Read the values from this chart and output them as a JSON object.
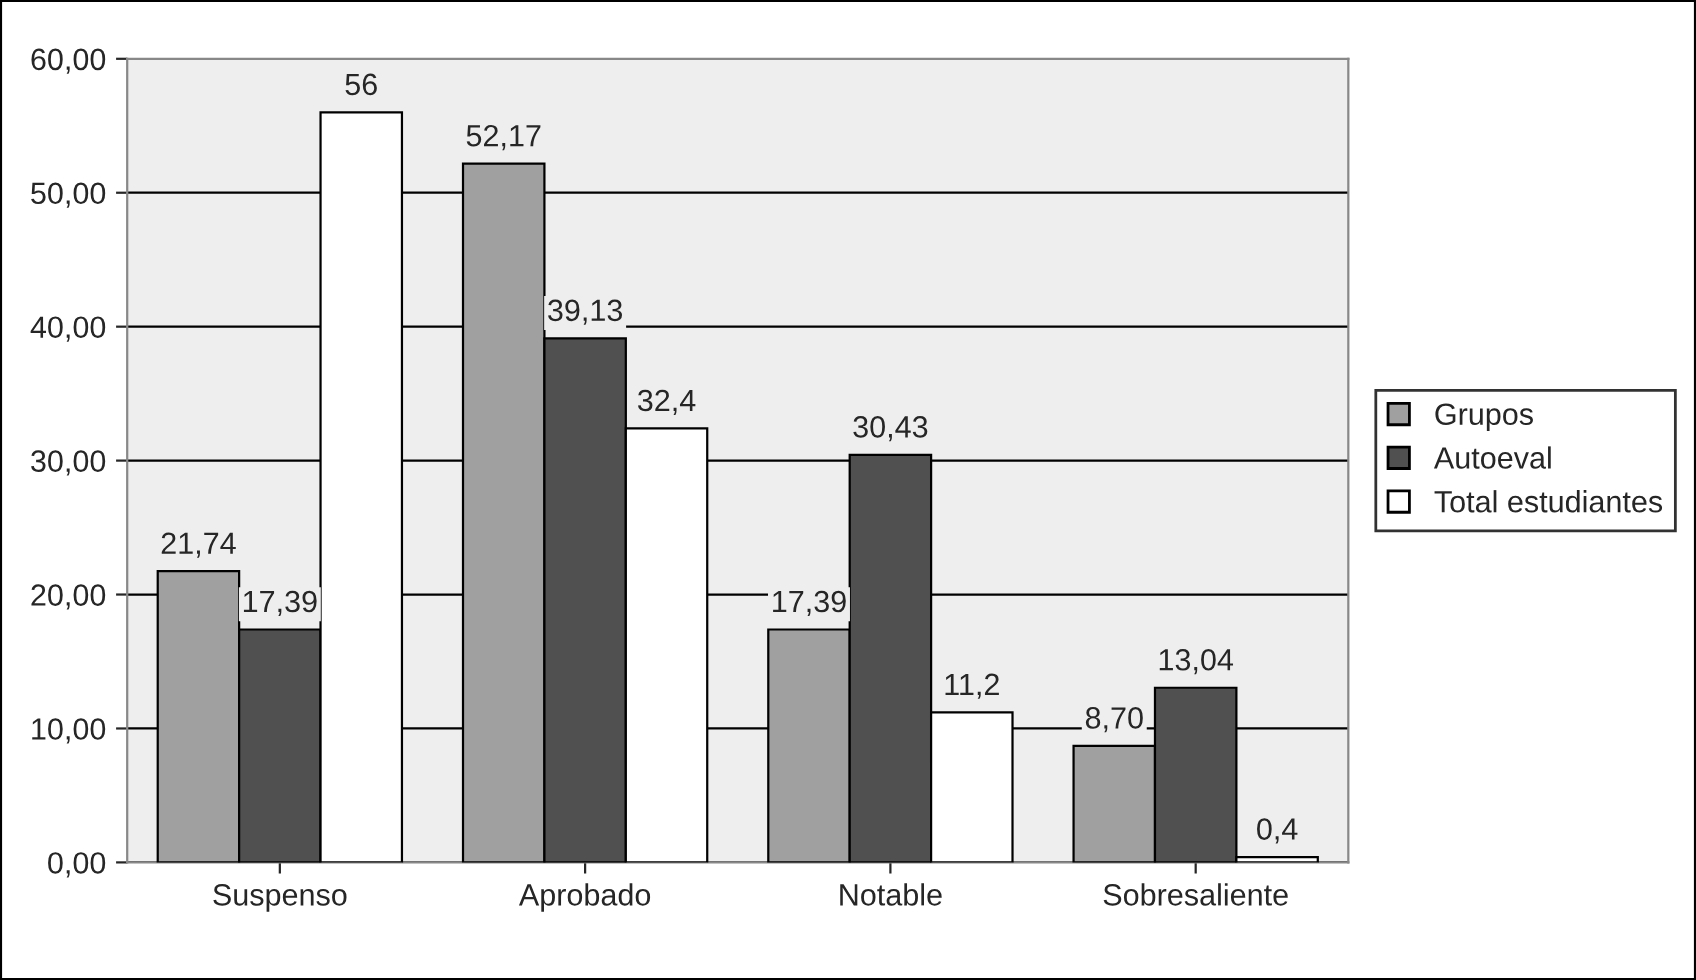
{
  "chart_data": {
    "type": "bar",
    "categories": [
      "Suspenso",
      "Aprobado",
      "Notable",
      "Sobresaliente"
    ],
    "series": [
      {
        "name": "Grupos",
        "color": "#a0a0a0",
        "values": [
          21.74,
          52.17,
          17.39,
          8.7
        ],
        "value_labels": [
          "21,74",
          "52,17",
          "17,39",
          "8,70"
        ]
      },
      {
        "name": "Autoeval",
        "color": "#505050",
        "values": [
          17.39,
          39.13,
          30.43,
          13.04
        ],
        "value_labels": [
          "17,39",
          "39,13",
          "30,43",
          "13,04"
        ]
      },
      {
        "name": "Total estudiantes",
        "color": "#ffffff",
        "values": [
          56,
          32.4,
          11.2,
          0.4
        ],
        "value_labels": [
          "56",
          "32,4",
          "11,2",
          "0,4"
        ]
      }
    ],
    "ylim": [
      0,
      60
    ],
    "yticks": [
      {
        "value": 0,
        "label": "0,00"
      },
      {
        "value": 10,
        "label": "10,00"
      },
      {
        "value": 20,
        "label": "20,00"
      },
      {
        "value": 30,
        "label": "30,00"
      },
      {
        "value": 40,
        "label": "40,00"
      },
      {
        "value": 50,
        "label": "50,00"
      },
      {
        "value": 60,
        "label": "60,00"
      }
    ],
    "grid": "y",
    "legend": "right"
  }
}
